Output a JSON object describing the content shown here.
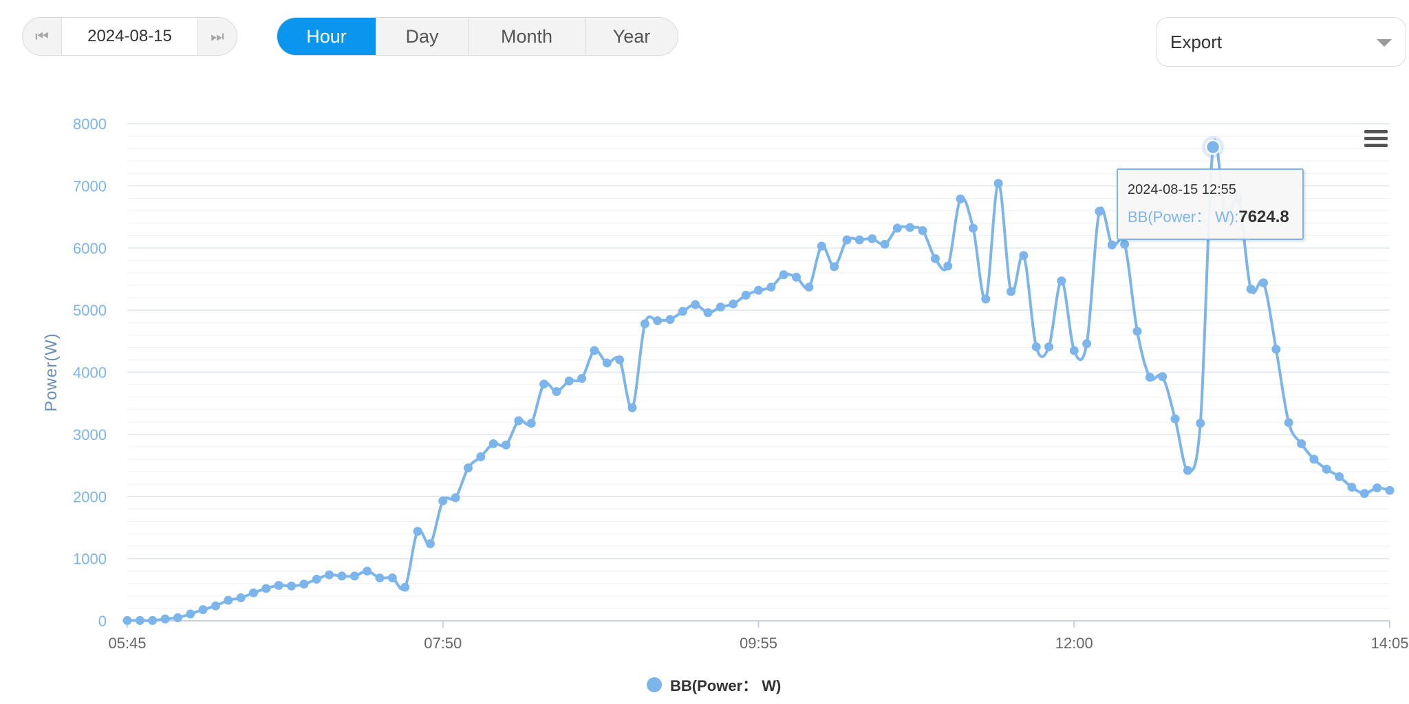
{
  "toolbar": {
    "date": "2024-08-15",
    "prev_icon": "skip-back-icon",
    "next_icon": "skip-forward-icon",
    "tabs": [
      {
        "label": "Hour",
        "active": true
      },
      {
        "label": "Day",
        "active": false
      },
      {
        "label": "Month",
        "active": false
      },
      {
        "label": "Year",
        "active": false
      }
    ],
    "export_label": "Export"
  },
  "colors": {
    "accent": "#0a96ec",
    "series": "#7cb5ec",
    "axis_text": "#7cb5ec"
  },
  "tooltip": {
    "date": "2024-08-15 12:55",
    "series": "BB(Power： W):",
    "value": "7624.8"
  },
  "chart_data": {
    "type": "line",
    "ylabel": "Power(W)",
    "xlabel": "",
    "ylim": [
      0,
      8000
    ],
    "yticks": [
      0,
      1000,
      2000,
      3000,
      4000,
      5000,
      6000,
      7000,
      8000
    ],
    "xticks": [
      "05:45",
      "07:50",
      "09:55",
      "12:00",
      "14:05"
    ],
    "grid": true,
    "legend": "bottom-center",
    "x_start": "05:45",
    "x_end": "14:05",
    "series": [
      {
        "name": "BB(Power： W)",
        "color": "#7cb5ec",
        "points": [
          [
            "05:45",
            5
          ],
          [
            "05:50",
            5
          ],
          [
            "05:55",
            5
          ],
          [
            "06:00",
            30
          ],
          [
            "06:05",
            50
          ],
          [
            "06:10",
            110
          ],
          [
            "06:15",
            180
          ],
          [
            "06:20",
            240
          ],
          [
            "06:25",
            330
          ],
          [
            "06:30",
            370
          ],
          [
            "06:35",
            450
          ],
          [
            "06:40",
            520
          ],
          [
            "06:45",
            570
          ],
          [
            "06:50",
            560
          ],
          [
            "06:55",
            590
          ],
          [
            "07:00",
            670
          ],
          [
            "07:05",
            740
          ],
          [
            "07:10",
            720
          ],
          [
            "07:15",
            720
          ],
          [
            "07:20",
            800
          ],
          [
            "07:25",
            690
          ],
          [
            "07:30",
            690
          ],
          [
            "07:35",
            540
          ],
          [
            "07:40",
            1440
          ],
          [
            "07:45",
            1240
          ],
          [
            "07:50",
            1930
          ],
          [
            "07:55",
            1980
          ],
          [
            "08:00",
            2460
          ],
          [
            "08:05",
            2640
          ],
          [
            "08:10",
            2850
          ],
          [
            "08:15",
            2830
          ],
          [
            "08:20",
            3220
          ],
          [
            "08:25",
            3180
          ],
          [
            "08:30",
            3810
          ],
          [
            "08:35",
            3690
          ],
          [
            "08:40",
            3860
          ],
          [
            "08:45",
            3900
          ],
          [
            "08:50",
            4350
          ],
          [
            "08:55",
            4150
          ],
          [
            "09:00",
            4200
          ],
          [
            "09:05",
            3430
          ],
          [
            "09:10",
            4780
          ],
          [
            "09:15",
            4830
          ],
          [
            "09:20",
            4850
          ],
          [
            "09:25",
            4980
          ],
          [
            "09:30",
            5090
          ],
          [
            "09:35",
            4960
          ],
          [
            "09:40",
            5050
          ],
          [
            "09:45",
            5100
          ],
          [
            "09:50",
            5240
          ],
          [
            "09:55",
            5320
          ],
          [
            "10:00",
            5370
          ],
          [
            "10:05",
            5570
          ],
          [
            "10:10",
            5530
          ],
          [
            "10:15",
            5370
          ],
          [
            "10:20",
            6030
          ],
          [
            "10:25",
            5700
          ],
          [
            "10:30",
            6130
          ],
          [
            "10:35",
            6130
          ],
          [
            "10:40",
            6150
          ],
          [
            "10:45",
            6060
          ],
          [
            "10:50",
            6320
          ],
          [
            "10:55",
            6330
          ],
          [
            "11:00",
            6280
          ],
          [
            "11:05",
            5830
          ],
          [
            "11:10",
            5710
          ],
          [
            "11:15",
            6790
          ],
          [
            "11:20",
            6320
          ],
          [
            "11:25",
            5180
          ],
          [
            "11:30",
            7040
          ],
          [
            "11:35",
            5300
          ],
          [
            "11:40",
            5880
          ],
          [
            "11:45",
            4410
          ],
          [
            "11:50",
            4410
          ],
          [
            "11:55",
            5470
          ],
          [
            "12:00",
            4350
          ],
          [
            "12:05",
            4460
          ],
          [
            "12:10",
            6590
          ],
          [
            "12:15",
            6050
          ],
          [
            "12:20",
            6060
          ],
          [
            "12:25",
            4660
          ],
          [
            "12:30",
            3920
          ],
          [
            "12:35",
            3930
          ],
          [
            "12:40",
            3250
          ],
          [
            "12:45",
            2420
          ],
          [
            "12:50",
            3180
          ],
          [
            "12:55",
            7624.8
          ],
          [
            "13:00",
            6480
          ],
          [
            "13:05",
            6800
          ],
          [
            "13:10",
            5340
          ],
          [
            "13:15",
            5440
          ],
          [
            "13:20",
            4370
          ],
          [
            "13:25",
            3190
          ],
          [
            "13:30",
            2850
          ],
          [
            "13:35",
            2600
          ],
          [
            "13:40",
            2440
          ],
          [
            "13:45",
            2320
          ],
          [
            "13:50",
            2150
          ],
          [
            "13:55",
            2050
          ],
          [
            "14:00",
            2140
          ],
          [
            "14:05",
            2100
          ]
        ]
      }
    ],
    "highlight": {
      "x": "12:55",
      "y": 7624.8
    }
  }
}
